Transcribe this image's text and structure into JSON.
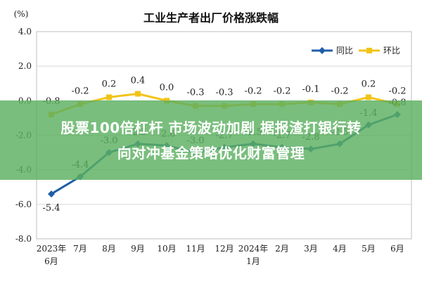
{
  "chart_data": {
    "type": "line",
    "title": "工业生产者出厂价格涨跌幅",
    "unit_label": "(%)",
    "categories": [
      [
        "2023年",
        "6月"
      ],
      [
        "7月"
      ],
      [
        "8月"
      ],
      [
        "9月"
      ],
      [
        "10月"
      ],
      [
        "11月"
      ],
      [
        "12月"
      ],
      [
        "2024年",
        "1月"
      ],
      [
        "2月"
      ],
      [
        "3月"
      ],
      [
        "4月"
      ],
      [
        "5月"
      ],
      [
        "6月"
      ]
    ],
    "ylim": [
      -8.0,
      4.0
    ],
    "yticks": [
      "4.0",
      "2.0",
      "0.0",
      "-2.0",
      "-4.0",
      "-6.0",
      "-8.0"
    ],
    "grid": true,
    "legend_position": "top-right",
    "series": [
      {
        "name": "同比",
        "color": "#1f5fa8",
        "values": [
          -5.4,
          -4.4,
          -3.0,
          -2.5,
          -2.6,
          -3.0,
          -2.7,
          -2.5,
          -2.7,
          -2.8,
          -2.5,
          -1.4,
          -0.8
        ],
        "labels": [
          "-5.4",
          "-4.4",
          "-3.0",
          "-2.5",
          "-2.6",
          "-3.0",
          "-2.7",
          "-2.5",
          "-2.7",
          "-2.8",
          "-2.5",
          "-1.4",
          "-0.8"
        ]
      },
      {
        "name": "环比",
        "color": "#f2c418",
        "values": [
          -0.8,
          -0.2,
          0.2,
          0.4,
          0.0,
          -0.3,
          -0.3,
          -0.2,
          -0.2,
          -0.1,
          -0.2,
          0.2,
          -0.2
        ],
        "labels": [
          "-0.8",
          "-0.2",
          "0.2",
          "0.4",
          "0.0",
          "-0.3",
          "-0.3",
          "-0.2",
          "-0.2",
          "-0.1",
          "-0.2",
          "0.2",
          "-0.2"
        ]
      }
    ]
  },
  "banner": {
    "line1": "股票100倍杠杆 市场波动加剧 据报渣打银行转",
    "line2": "向对冲基金策略优化财富管理"
  }
}
